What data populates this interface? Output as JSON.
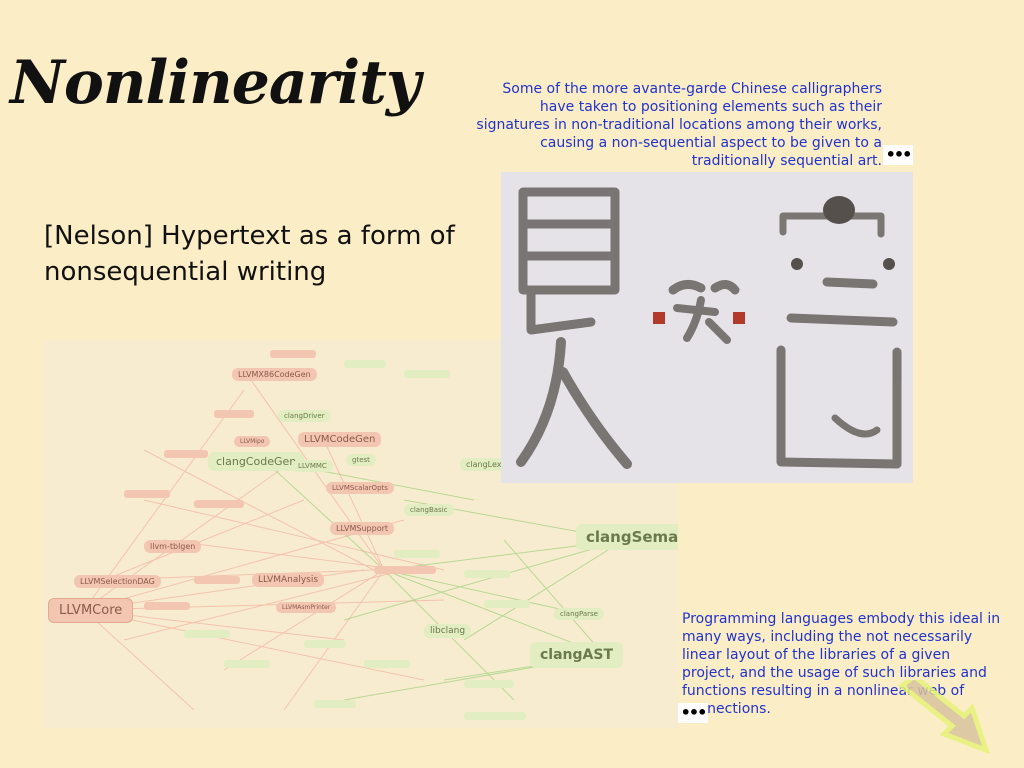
{
  "slide": {
    "title": "Nonlinearity",
    "heading": "[Nelson] Hypertext as a form of\n nonsequential writing",
    "caption_top": "Some of the more avante-garde Chinese calligraphers have taken to positioning elements such as their signatures in non-traditional locations among their works, causing a non-sequential aspect to be given to a traditionally sequential art.",
    "caption_bottom": "Programming languages embody this ideal in many ways, including the not necessarily  linear layout of the libraries of a given project, and the usage of such libraries and functions resulting in a nonlinear web of connections.",
    "more_top_label": "•••",
    "more_bottom_label": "•••"
  },
  "network": {
    "big_nodes": [
      {
        "label": "LLVMCore",
        "color": "red"
      },
      {
        "label": "clangSema",
        "color": "green"
      },
      {
        "label": "clangAST",
        "color": "green"
      },
      {
        "label": "clangCodeGen",
        "color": "green"
      },
      {
        "label": "LLVMCodeGen",
        "color": "red"
      },
      {
        "label": "LLVMX86CodeGen",
        "color": "red"
      },
      {
        "label": "LLVMAnalysis",
        "color": "red"
      },
      {
        "label": "LLVMSupport",
        "color": "red"
      },
      {
        "label": "LLVMSelectionDAG",
        "color": "red"
      },
      {
        "label": "llvm-tblgen",
        "color": "red"
      },
      {
        "label": "LLVMScalarOpts",
        "color": "red"
      },
      {
        "label": "LLVMAsmPrinter",
        "color": "red"
      },
      {
        "label": "libclang",
        "color": "green"
      },
      {
        "label": "clangBasic",
        "color": "green"
      },
      {
        "label": "clangDriver",
        "color": "green"
      },
      {
        "label": "clangParse",
        "color": "green"
      },
      {
        "label": "LLVMMC",
        "color": "green"
      },
      {
        "label": "gtest",
        "color": "green"
      },
      {
        "label": "LLVMipo",
        "color": "red"
      },
      {
        "label": "clangLex",
        "color": "green"
      }
    ]
  },
  "colors": {
    "background": "#fbedc6",
    "caption": "#2233cc",
    "title": "#111111"
  }
}
